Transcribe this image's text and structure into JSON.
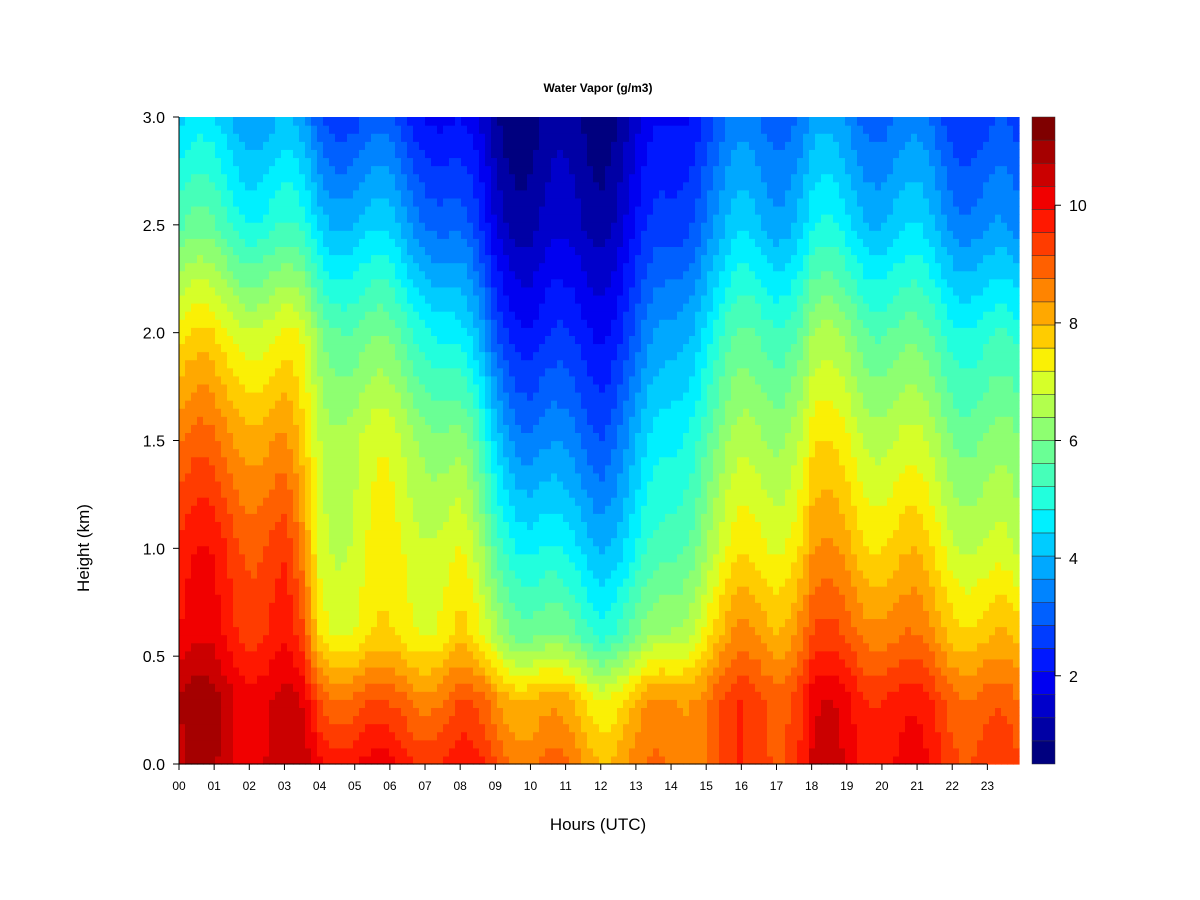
{
  "chart_data": {
    "type": "heatmap",
    "title": "Water Vapor (g/m3)",
    "xlabel": "Hours (UTC)",
    "ylabel": "Height (km)",
    "xlim": [
      0,
      23.9
    ],
    "ylim": [
      0.0,
      3.0
    ],
    "x_tick_labels": [
      "00",
      "01",
      "02",
      "03",
      "04",
      "05",
      "06",
      "07",
      "08",
      "09",
      "10",
      "11",
      "12",
      "13",
      "14",
      "15",
      "16",
      "17",
      "18",
      "19",
      "20",
      "21",
      "22",
      "23"
    ],
    "y_tick_labels": [
      "0.0",
      "0.5",
      "1.0",
      "1.5",
      "2.0",
      "2.5",
      "3.0"
    ],
    "colorbar": {
      "range": [
        0.5,
        11.5
      ],
      "levels": 22,
      "tick_labels": [
        "2",
        "4",
        "6",
        "8",
        "10"
      ],
      "colors": [
        "#00007F",
        "#0000A5",
        "#0000CB",
        "#0000F1",
        "#0018FF",
        "#003CFF",
        "#0060FF",
        "#0084FF",
        "#00A8FF",
        "#00CCFF",
        "#00F0FF",
        "#22FFDD",
        "#46FFB9",
        "#6AFF95",
        "#8EFF71",
        "#B2FF4D",
        "#D6FF29",
        "#FAF005",
        "#FFCC00",
        "#FFA800",
        "#FF8400",
        "#FF6000",
        "#FF3C00",
        "#FF1800",
        "#F10000",
        "#CB0000",
        "#A50000",
        "#7F0000"
      ]
    },
    "columns_hours": [
      0,
      1,
      2,
      3,
      3.5,
      4,
      5,
      6,
      7,
      8,
      9,
      10,
      11,
      12,
      13,
      14,
      15,
      16,
      17,
      17.8,
      18,
      19,
      20,
      21,
      22,
      23,
      23.9
    ],
    "surface_value": [
      10.6,
      10.5,
      10.5,
      10.4,
      10.3,
      10.2,
      10.0,
      9.8,
      9.8,
      9.6,
      9.2,
      8.8,
      8.5,
      8.3,
      8.4,
      8.6,
      9.0,
      9.2,
      9.4,
      9.8,
      10.2,
      10.2,
      10.0,
      9.8,
      9.6,
      9.3,
      9.0
    ],
    "value_at_0_3km": [
      10.8,
      10.6,
      10.5,
      10.2,
      10.0,
      9.2,
      9.0,
      8.8,
      8.9,
      8.9,
      8.5,
      8.2,
      7.8,
      7.5,
      7.8,
      8.4,
      8.9,
      9.2,
      9.3,
      9.6,
      10.0,
      10.0,
      9.8,
      9.5,
      9.2,
      8.9,
      8.5
    ],
    "value_at_0_6km": [
      10.0,
      9.9,
      9.7,
      9.6,
      9.0,
      7.6,
      7.3,
      7.3,
      7.5,
      7.5,
      6.6,
      6.0,
      5.6,
      5.4,
      5.7,
      6.4,
      7.6,
      8.2,
      8.3,
      8.8,
      9.0,
      9.0,
      8.8,
      8.4,
      8.1,
      7.8,
      7.6
    ],
    "value_at_1_0km": [
      9.7,
      9.6,
      9.4,
      9.2,
      8.3,
      7.1,
      7.0,
      7.1,
      7.2,
      7.0,
      5.6,
      4.9,
      4.4,
      4.3,
      4.6,
      5.4,
      6.6,
      7.2,
      7.4,
      7.8,
      8.1,
      8.1,
      7.8,
      7.6,
      7.2,
      6.8,
      6.4
    ],
    "value_at_1_5km": [
      8.8,
      8.6,
      8.5,
      8.2,
      7.5,
      6.9,
      6.8,
      6.8,
      6.6,
      6.0,
      4.4,
      3.5,
      3.2,
      3.2,
      3.8,
      4.7,
      5.8,
      6.3,
      6.6,
      7.0,
      7.3,
      7.2,
      6.9,
      6.6,
      6.3,
      6.0,
      5.8
    ],
    "value_at_2_0km": [
      7.5,
      7.3,
      7.2,
      7.0,
      6.8,
      6.2,
      5.8,
      5.6,
      5.3,
      4.4,
      3.0,
      2.3,
      2.2,
      2.3,
      2.8,
      3.8,
      4.8,
      5.4,
      5.6,
      5.9,
      6.2,
      6.2,
      5.8,
      5.5,
      5.3,
      5.0,
      4.8
    ],
    "value_at_2_5km": [
      5.6,
      5.4,
      5.2,
      5.0,
      4.8,
      4.4,
      4.2,
      4.0,
      3.6,
      2.9,
      1.7,
      1.3,
      1.2,
      1.4,
      1.9,
      2.6,
      3.6,
      4.0,
      4.1,
      4.4,
      4.6,
      4.5,
      4.3,
      4.1,
      3.8,
      3.5,
      3.2
    ],
    "value_at_3_0km": [
      4.4,
      4.2,
      4.0,
      3.8,
      3.5,
      3.0,
      2.8,
      2.7,
      2.4,
      1.8,
      1.0,
      0.8,
      0.8,
      0.9,
      1.3,
      2.0,
      2.8,
      3.1,
      3.3,
      3.5,
      3.6,
      3.5,
      3.3,
      3.1,
      2.9,
      2.6,
      2.4
    ]
  }
}
